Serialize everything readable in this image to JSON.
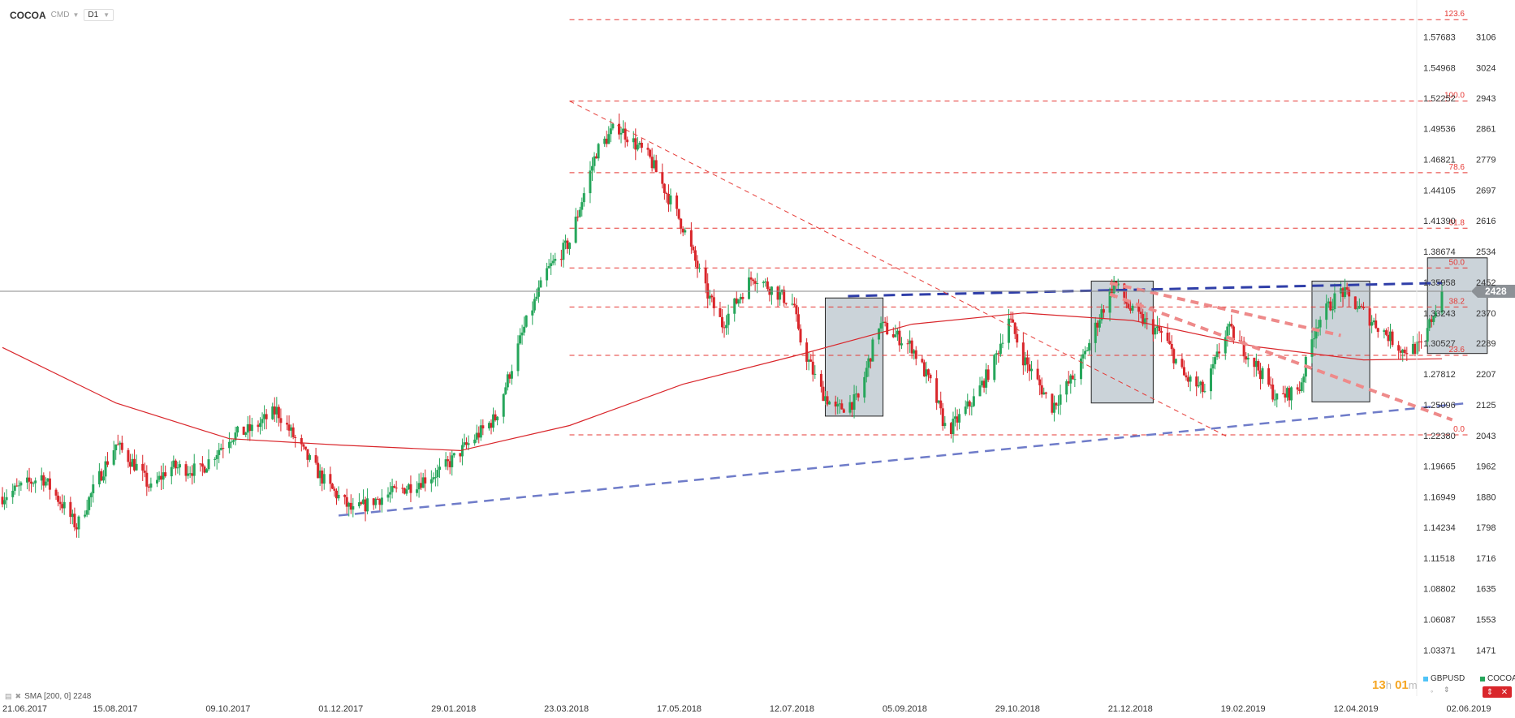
{
  "toolbar": {
    "symbol": "COCOA",
    "type": "CMD",
    "timeframe": "D1"
  },
  "indicator": {
    "label": "SMA [200, 0] 2248"
  },
  "countdown": {
    "hours": "13",
    "h_unit": "h",
    "minutes": "01",
    "m_unit": "m"
  },
  "legend": [
    {
      "name": "GBPUSD",
      "color": "#4fc3f7"
    },
    {
      "name": "COCOA",
      "color": "#26a65b"
    }
  ],
  "colors": {
    "up": "#26a65b",
    "down": "#d9262b",
    "sma": "#d9262b",
    "fib": "#e53935",
    "trend": "#5c6bc0",
    "price_tag": "#8c9196"
  },
  "chart_data": {
    "type": "candlestick",
    "title": "",
    "timeframe": "D1",
    "x_labels": [
      "21.06.2017",
      "15.08.2017",
      "09.10.2017",
      "01.12.2017",
      "29.01.2018",
      "23.03.2018",
      "17.05.2018",
      "12.07.2018",
      "05.09.2018",
      "29.10.2018",
      "21.12.2018",
      "19.02.2019",
      "12.04.2019",
      "02.06.2019"
    ],
    "y_axis_primary": {
      "labels": [
        3106,
        3024,
        2943,
        2861,
        2779,
        2697,
        2616,
        2534,
        2452,
        2370,
        2289,
        2207,
        2125,
        2043,
        1962,
        1880,
        1798,
        1716,
        1635,
        1553,
        1471
      ],
      "range": [
        1420,
        3160
      ]
    },
    "y_axis_secondary": {
      "labels": [
        "1.57683",
        "1.54968",
        "1.52252",
        "1.49536",
        "1.46821",
        "1.44105",
        "1.41390",
        "1.38674",
        "1.35958",
        "1.33243",
        "1.30527",
        "1.27812",
        "1.25096",
        "1.22380",
        "1.19665",
        "1.16949",
        "1.14234",
        "1.11518",
        "1.08802",
        "1.06087",
        "1.03371"
      ]
    },
    "current_price": 2428,
    "price_path": [
      [
        "21.06.2017",
        1880
      ],
      [
        "05.07.2017",
        1920
      ],
      [
        "10.07.2017",
        1935
      ],
      [
        "20.07.2017",
        1860
      ],
      [
        "27.07.2017",
        1800
      ],
      [
        "05.08.2017",
        1910
      ],
      [
        "15.08.2017",
        2020
      ],
      [
        "25.08.2017",
        1960
      ],
      [
        "01.09.2017",
        1900
      ],
      [
        "10.09.2017",
        1960
      ],
      [
        "25.09.2017",
        1950
      ],
      [
        "09.10.2017",
        2040
      ],
      [
        "20.10.2017",
        2060
      ],
      [
        "01.11.2017",
        2110
      ],
      [
        "15.11.2017",
        1990
      ],
      [
        "25.11.2017",
        1915
      ],
      [
        "01.12.2017",
        1880
      ],
      [
        "08.12.2017",
        1840
      ],
      [
        "18.12.2017",
        1870
      ],
      [
        "05.01.2018",
        1910
      ],
      [
        "20.01.2018",
        1950
      ],
      [
        "29.01.2018",
        2000
      ],
      [
        "15.02.2018",
        2090
      ],
      [
        "01.03.2018",
        2330
      ],
      [
        "12.03.2018",
        2480
      ],
      [
        "23.03.2018",
        2560
      ],
      [
        "05.04.2018",
        2800
      ],
      [
        "15.04.2018",
        2870
      ],
      [
        "01.05.2018",
        2780
      ],
      [
        "17.05.2018",
        2600
      ],
      [
        "28.05.2018",
        2430
      ],
      [
        "05.06.2018",
        2340
      ],
      [
        "20.06.2018",
        2470
      ],
      [
        "10.07.2018",
        2390
      ],
      [
        "12.07.2018",
        2310
      ],
      [
        "22.07.2018",
        2170
      ],
      [
        "30.07.2018",
        2110
      ],
      [
        "10.08.2018",
        2140
      ],
      [
        "20.08.2018",
        2340
      ],
      [
        "05.09.2018",
        2280
      ],
      [
        "15.09.2018",
        2170
      ],
      [
        "22.09.2018",
        2050
      ],
      [
        "05.10.2018",
        2140
      ],
      [
        "15.10.2018",
        2240
      ],
      [
        "22.10.2018",
        2360
      ],
      [
        "29.10.2018",
        2250
      ],
      [
        "12.11.2018",
        2120
      ],
      [
        "25.11.2018",
        2220
      ],
      [
        "05.12.2018",
        2360
      ],
      [
        "12.12.2018",
        2450
      ],
      [
        "21.12.2018",
        2370
      ],
      [
        "05.01.2019",
        2310
      ],
      [
        "15.01.2019",
        2200
      ],
      [
        "25.01.2019",
        2160
      ],
      [
        "05.02.2019",
        2330
      ],
      [
        "19.02.2019",
        2230
      ],
      [
        "01.03.2019",
        2140
      ],
      [
        "12.03.2019",
        2170
      ],
      [
        "20.03.2019",
        2340
      ],
      [
        "01.04.2019",
        2430
      ],
      [
        "12.04.2019",
        2370
      ],
      [
        "22.04.2019",
        2320
      ],
      [
        "01.05.2019",
        2270
      ],
      [
        "10.05.2019",
        2280
      ],
      [
        "20.05.2019",
        2428
      ]
    ],
    "sma_200": [
      [
        "21.06.2017",
        2278
      ],
      [
        "15.08.2017",
        2130
      ],
      [
        "09.10.2017",
        2035
      ],
      [
        "01.12.2017",
        2018
      ],
      [
        "29.01.2018",
        2003
      ],
      [
        "23.03.2018",
        2070
      ],
      [
        "17.05.2018",
        2180
      ],
      [
        "12.07.2018",
        2258
      ],
      [
        "05.09.2018",
        2340
      ],
      [
        "29.10.2018",
        2370
      ],
      [
        "21.12.2018",
        2350
      ],
      [
        "19.02.2019",
        2280
      ],
      [
        "12.04.2019",
        2245
      ],
      [
        "20.05.2019",
        2248
      ]
    ],
    "fibonacci": [
      {
        "level": "123.6",
        "price": 3152
      },
      {
        "level": "100.0",
        "price": 2935
      },
      {
        "level": "78.6",
        "price": 2744
      },
      {
        "level": "61.8",
        "price": 2596
      },
      {
        "level": "50.0",
        "price": 2490
      },
      {
        "level": "38.2",
        "price": 2386
      },
      {
        "level": "23.6",
        "price": 2257
      },
      {
        "level": "0.0",
        "price": 2045
      }
    ],
    "trendlines": [
      {
        "style": "dashed-blue",
        "from": [
          "01.12.2017",
          1830
        ],
        "to": [
          "02.06.2019",
          2130
        ]
      },
      {
        "style": "dashed-blue-thick",
        "from": [
          "05.08.2018",
          2415
        ],
        "to": [
          "20.05.2019",
          2450
        ]
      },
      {
        "style": "dashed-red-thin",
        "from": [
          "23.03.2018",
          2935
        ],
        "to": [
          "05.02.2019",
          2040
        ]
      },
      {
        "style": "dashed-red-thick",
        "from": [
          "10.12.2018",
          2450
        ],
        "to": [
          "01.04.2019",
          2310
        ]
      },
      {
        "style": "dashed-red-thick",
        "from": [
          "10.12.2018",
          2420
        ],
        "to": [
          "25.05.2019",
          2085
        ]
      }
    ],
    "zones": [
      {
        "from": "25.07.2018",
        "to": "22.08.2018",
        "low": 2095,
        "high": 2410
      },
      {
        "from": "01.12.2018",
        "to": "31.12.2018",
        "low": 2130,
        "high": 2455
      },
      {
        "from": "18.03.2019",
        "to": "15.04.2019",
        "low": 2133,
        "high": 2455
      },
      {
        "from": "13.05.2019",
        "to": "11.06.2019",
        "low": 2262,
        "high": 2517
      }
    ],
    "grid": false,
    "legend_placement": "bottom-right"
  }
}
